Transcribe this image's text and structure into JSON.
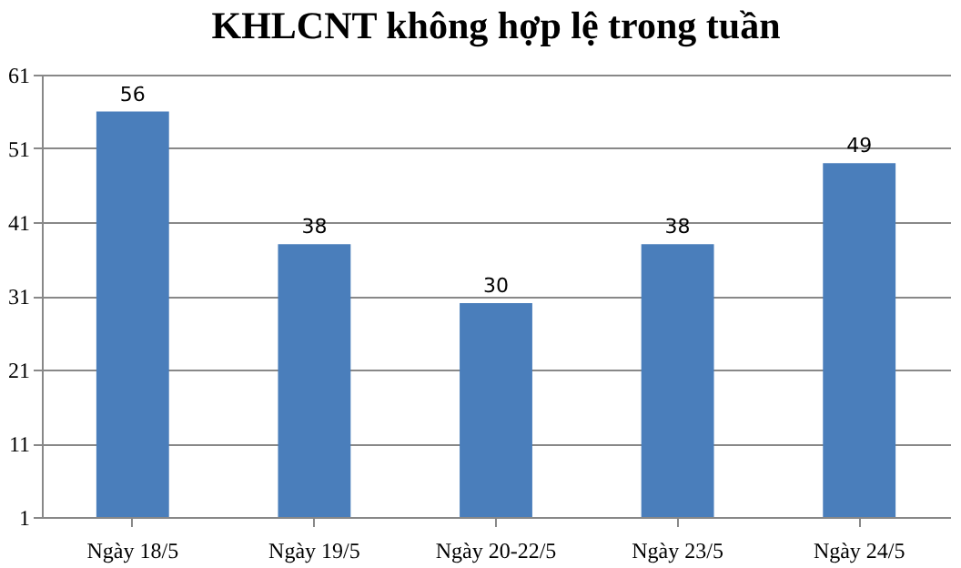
{
  "chart_data": {
    "type": "bar",
    "title": "KHLCNT không hợp lệ trong tuần",
    "categories": [
      "Ngày 18/5",
      "Ngày 19/5",
      "Ngày 20-22/5",
      "Ngày 23/5",
      "Ngày 24/5"
    ],
    "values": [
      56,
      38,
      30,
      38,
      49
    ],
    "color": "#4a7ebb",
    "ylim": [
      1,
      61
    ],
    "yticks": [
      1,
      11,
      21,
      31,
      41,
      51,
      61
    ],
    "grid": "y",
    "data_labels": true
  }
}
